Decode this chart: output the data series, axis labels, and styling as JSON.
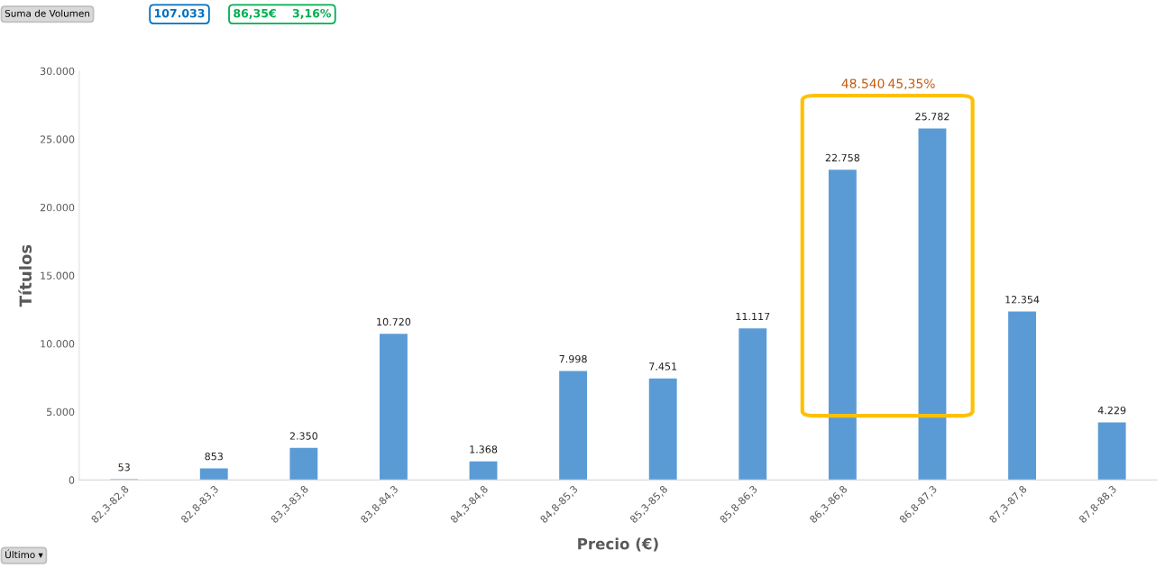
{
  "chart_data": {
    "type": "bar",
    "xlabel": "Precio (€)",
    "ylabel": "Títulos",
    "categories": [
      "82,3-82,8",
      "82,8-83,3",
      "83,3-83,8",
      "83,8-84,3",
      "84,3-84,8",
      "84,8-85,3",
      "85,3-85,8",
      "85,8-86,3",
      "86,3-86,8",
      "86,8-87,3",
      "87,3-87,8",
      "87,8-88,3"
    ],
    "values": [
      53,
      853,
      2350,
      10720,
      1368,
      7998,
      7451,
      11117,
      22758,
      25782,
      12354,
      4229
    ],
    "value_labels": [
      "53",
      "853",
      "2.350",
      "10.720",
      "1.368",
      "7.998",
      "7.451",
      "11.117",
      "22.758",
      "25.782",
      "12.354",
      "4.229"
    ],
    "color": "#5b9bd5",
    "ylim": [
      0,
      30000
    ],
    "yticks": [
      {
        "value": 0,
        "label": "0"
      },
      {
        "value": 5000,
        "label": "5.000"
      },
      {
        "value": 10000,
        "label": "10.000"
      },
      {
        "value": 15000,
        "label": "15.000"
      },
      {
        "value": 20000,
        "label": "20.000"
      },
      {
        "value": 25000,
        "label": "25.000"
      },
      {
        "value": 30000,
        "label": "30.000"
      }
    ],
    "annotations": [
      "Suma de Volumen",
      "107.033",
      "86,35€    3,16%",
      "Último ▾",
      "48.540",
      "45,35%"
    ],
    "grid": false,
    "legend": false
  }
}
